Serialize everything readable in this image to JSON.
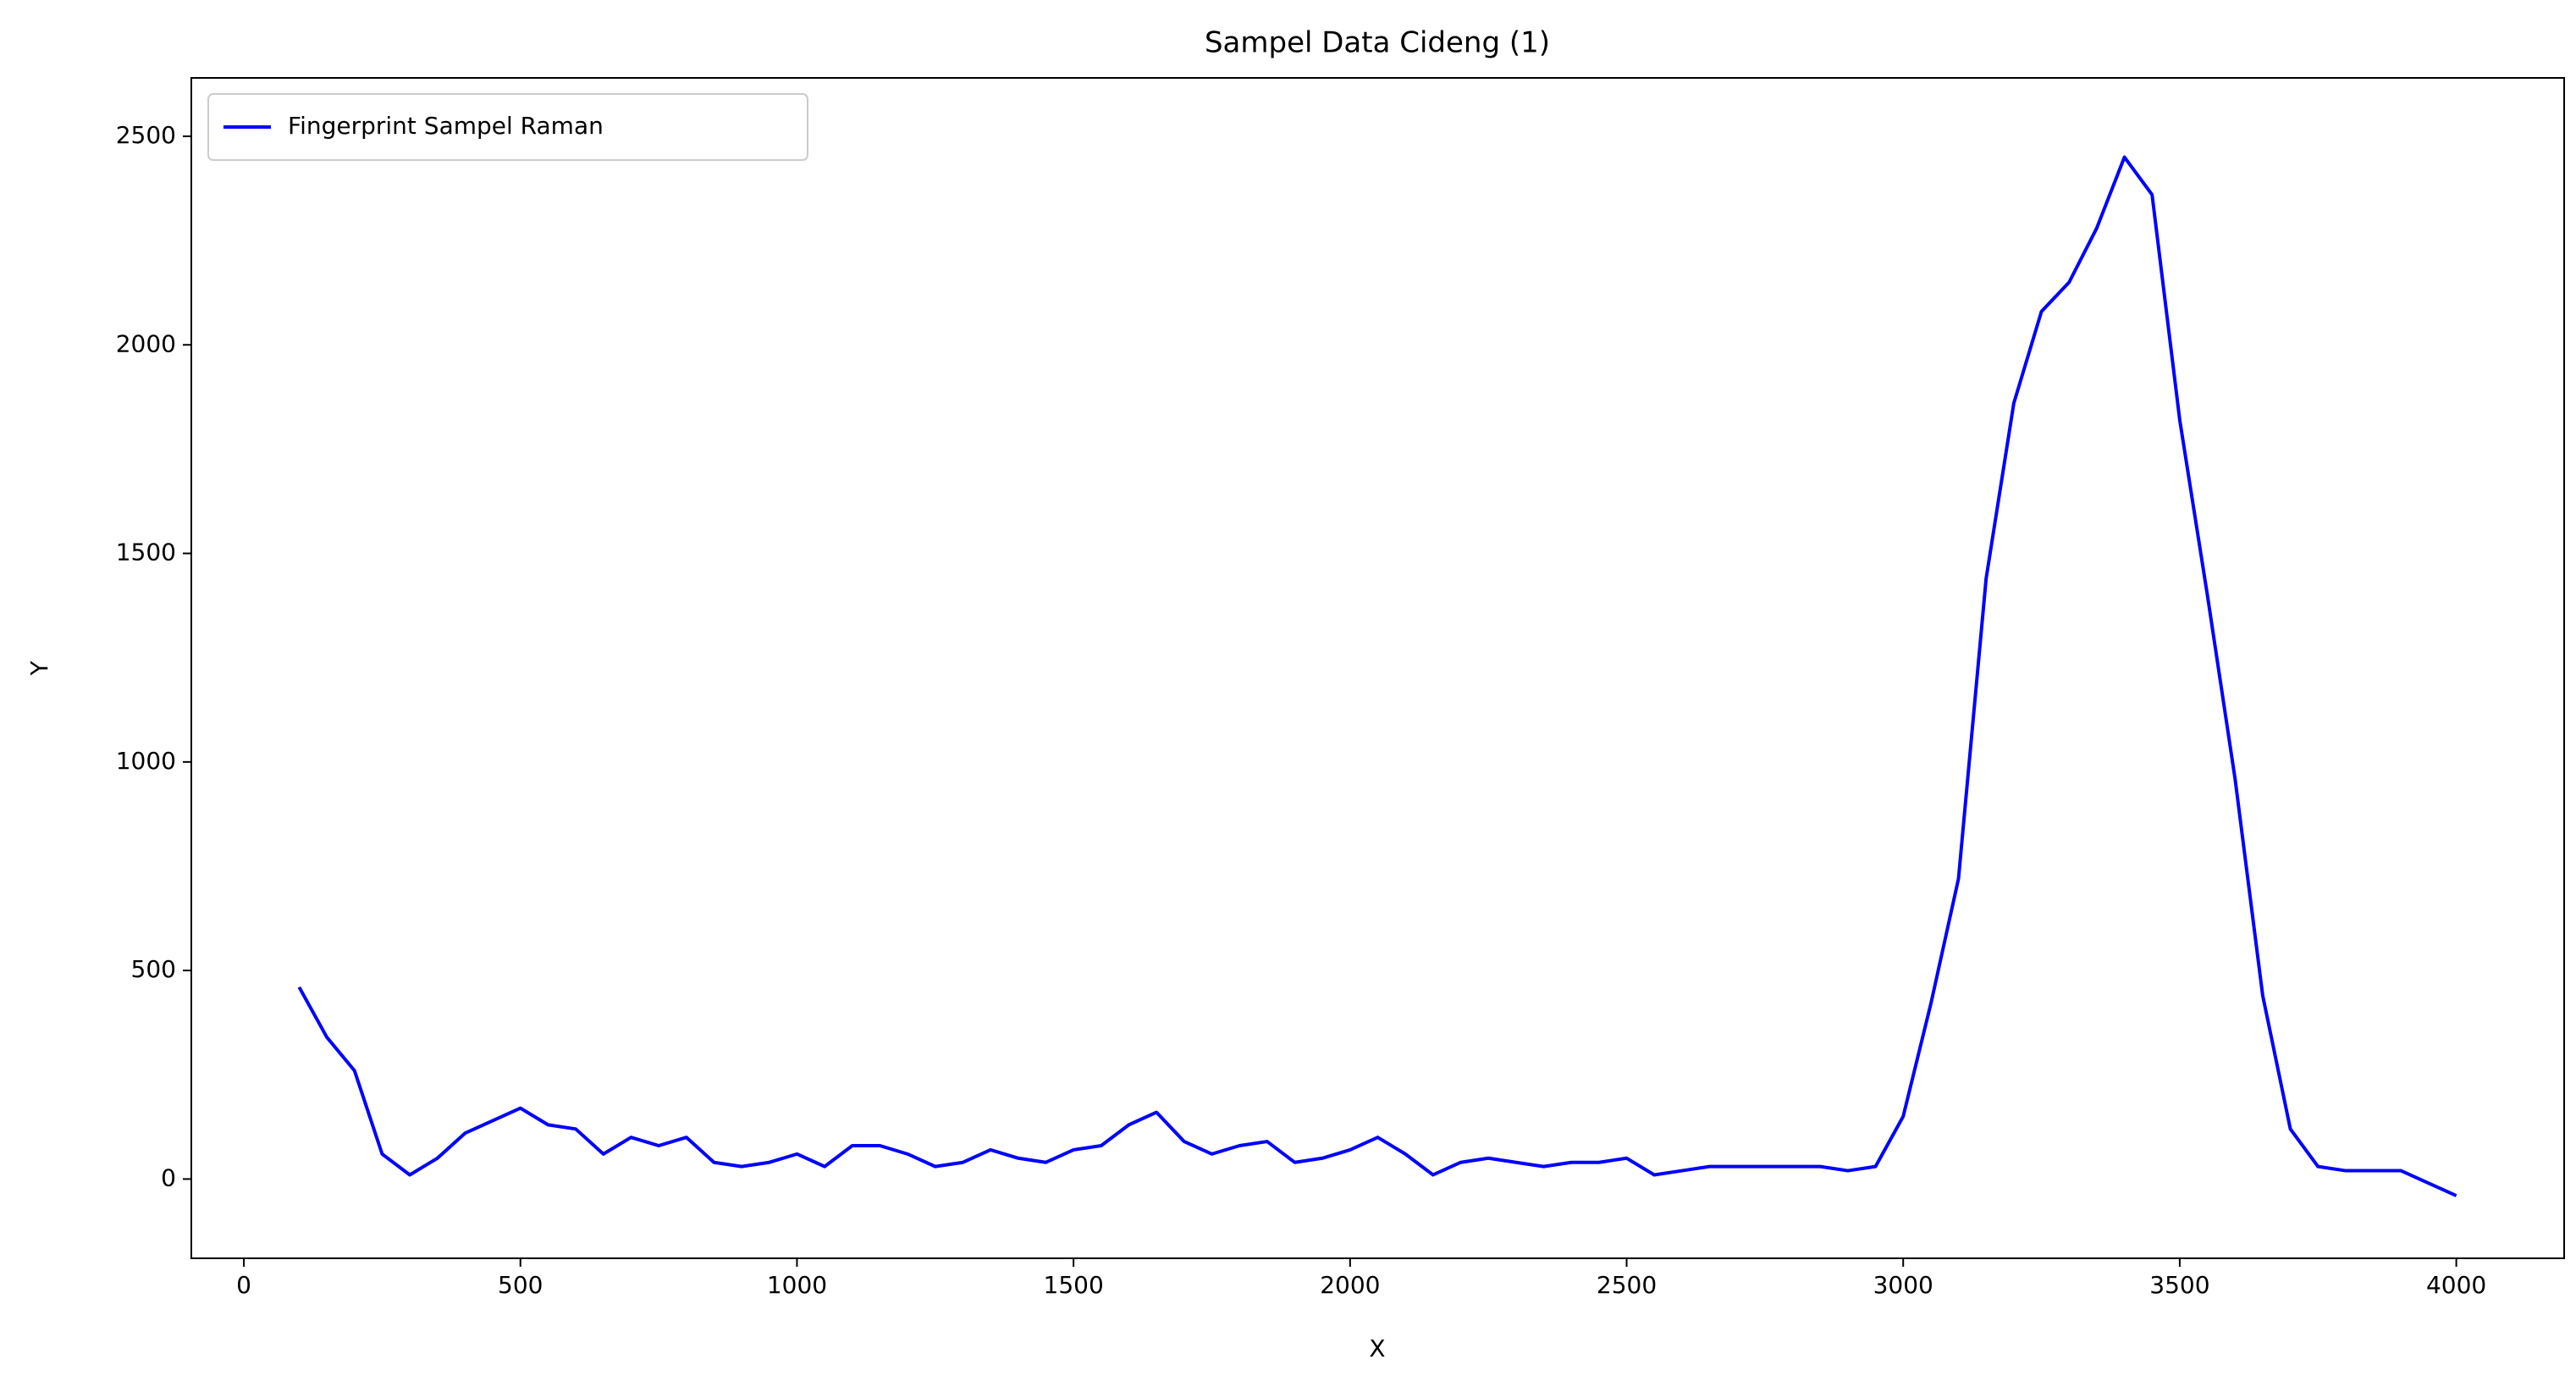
{
  "chart_data": {
    "type": "line",
    "title": "Sampel Data Cideng (1)",
    "x_label": "X",
    "y_label": "Y",
    "x": [
      100,
      150,
      200,
      250,
      300,
      350,
      400,
      450,
      500,
      550,
      600,
      650,
      700,
      750,
      800,
      850,
      900,
      950,
      1000,
      1050,
      1100,
      1150,
      1200,
      1250,
      1300,
      1350,
      1400,
      1450,
      1500,
      1550,
      1600,
      1650,
      1700,
      1750,
      1800,
      1850,
      1900,
      1950,
      2000,
      2050,
      2100,
      2150,
      2200,
      2250,
      2300,
      2350,
      2400,
      2450,
      2500,
      2550,
      2600,
      2650,
      2700,
      2750,
      2800,
      2850,
      2900,
      2950,
      3000,
      3050,
      3100,
      3150,
      3200,
      3250,
      3300,
      3350,
      3400,
      3450,
      3500,
      3550,
      3600,
      3650,
      3700,
      3750,
      3800,
      3850,
      3900,
      3950,
      4000
    ],
    "series": [
      {
        "name": "Fingerprint Sampel Raman",
        "color": "#0000ff",
        "values": [
          460,
          340,
          260,
          60,
          10,
          50,
          110,
          140,
          170,
          130,
          120,
          60,
          100,
          80,
          100,
          40,
          30,
          40,
          60,
          30,
          80,
          80,
          60,
          30,
          40,
          70,
          50,
          40,
          70,
          80,
          130,
          160,
          90,
          60,
          80,
          90,
          40,
          50,
          70,
          100,
          60,
          10,
          40,
          50,
          40,
          30,
          40,
          40,
          50,
          10,
          20,
          30,
          30,
          30,
          30,
          30,
          20,
          30,
          150,
          420,
          720,
          1440,
          1860,
          2080,
          2150,
          2280,
          2450,
          2360,
          1820,
          1400,
          960,
          440,
          120,
          30,
          20,
          20,
          20,
          -10,
          -40
        ]
      }
    ],
    "xlim": [
      -95,
      4195
    ],
    "ylim": [
      -190,
      2640
    ],
    "xticks": [
      0,
      500,
      1000,
      1500,
      2000,
      2500,
      3000,
      3500,
      4000
    ],
    "yticks": [
      0,
      500,
      1000,
      1500,
      2000,
      2500
    ],
    "grid": false,
    "legend": "upper-left"
  }
}
